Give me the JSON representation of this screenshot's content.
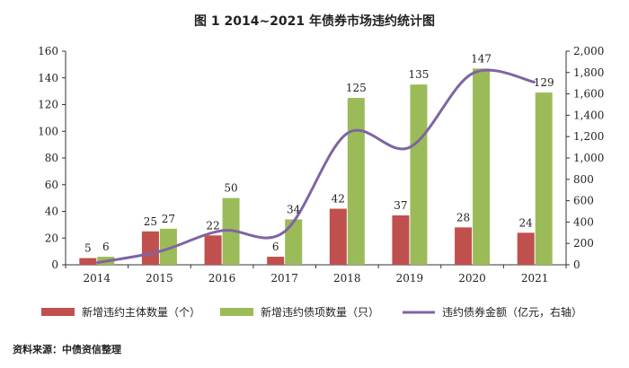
{
  "chart_data": {
    "type": "bar",
    "title": "图 1 2014~2021 年债券市场违约统计图",
    "categories": [
      "2014",
      "2015",
      "2016",
      "2017",
      "2018",
      "2019",
      "2020",
      "2021"
    ],
    "series": [
      {
        "name": "新增违约主体数量（个）",
        "type": "bar",
        "axis": "left",
        "color": "#c0504d",
        "values": [
          5,
          25,
          22,
          6,
          42,
          37,
          28,
          24
        ]
      },
      {
        "name": "新增违约债项数量（只）",
        "type": "bar",
        "axis": "left",
        "color": "#9bbb59",
        "values": [
          6,
          27,
          50,
          34,
          125,
          135,
          147,
          129
        ]
      },
      {
        "name": "违约债券金额（亿元，右轴）",
        "type": "line",
        "axis": "right",
        "color": "#8064a2",
        "values": [
          20,
          125,
          320,
          310,
          1230,
          1100,
          1790,
          1710
        ]
      }
    ],
    "left_axis": {
      "min": 0,
      "max": 160,
      "step": 20,
      "ticks": [
        "0",
        "20",
        "40",
        "60",
        "80",
        "100",
        "120",
        "140",
        "160"
      ]
    },
    "right_axis": {
      "min": 0,
      "max": 2000,
      "step": 200,
      "ticks": [
        "0",
        "200",
        "400",
        "600",
        "800",
        "1,000",
        "1,200",
        "1,400",
        "1,600",
        "1,800",
        "2,000"
      ]
    },
    "legend_position": "bottom",
    "grid": false
  },
  "source_text": "资料来源：中债资信整理"
}
